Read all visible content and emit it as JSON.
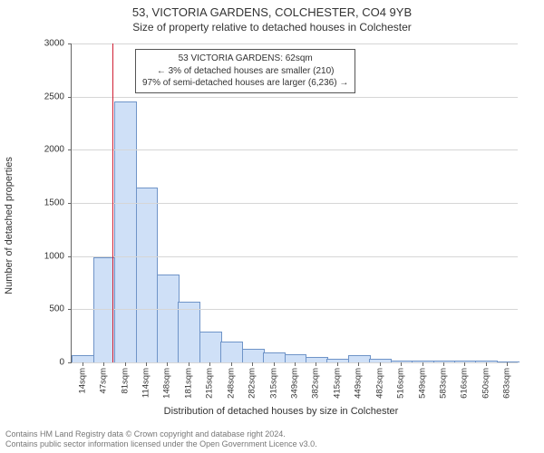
{
  "title": "53, VICTORIA GARDENS, COLCHESTER, CO4 9YB",
  "subtitle": "Size of property relative to detached houses in Colchester",
  "chart": {
    "type": "histogram",
    "ylabel": "Number of detached properties",
    "xlabel": "Distribution of detached houses by size in Colchester",
    "ylim": [
      0,
      3000
    ],
    "ytick_step": 500,
    "yticks": [
      0,
      500,
      1000,
      1500,
      2000,
      2500,
      3000
    ],
    "grid_color": "#d6d6d6",
    "bar_color": "#cfe0f7",
    "bar_border": "#6f94c8",
    "ref_line_color": "#d02035",
    "ref_value_sqm": 62,
    "xtick_labels": [
      "14sqm",
      "47sqm",
      "81sqm",
      "114sqm",
      "148sqm",
      "181sqm",
      "215sqm",
      "248sqm",
      "282sqm",
      "315sqm",
      "349sqm",
      "382sqm",
      "415sqm",
      "449sqm",
      "482sqm",
      "516sqm",
      "549sqm",
      "583sqm",
      "616sqm",
      "650sqm",
      "683sqm"
    ],
    "values": [
      60,
      980,
      2450,
      1640,
      820,
      560,
      280,
      190,
      120,
      85,
      70,
      40,
      25,
      60,
      22,
      10,
      8,
      6,
      6,
      5,
      4
    ],
    "label_fontsize": 11,
    "tick_fontsize": 10,
    "title_fontsize": 13
  },
  "annotation": {
    "line1": "53 VICTORIA GARDENS: 62sqm",
    "line2": "← 3% of detached houses are smaller (210)",
    "line3": "97% of semi-detached houses are larger (6,236) →",
    "border_color": "#555555",
    "bg_color": "#ffffff",
    "text_color": "#333333"
  },
  "footer": {
    "line1": "Contains HM Land Registry data © Crown copyright and database right 2024.",
    "line2": "Contains public sector information licensed under the Open Government Licence v3.0."
  }
}
